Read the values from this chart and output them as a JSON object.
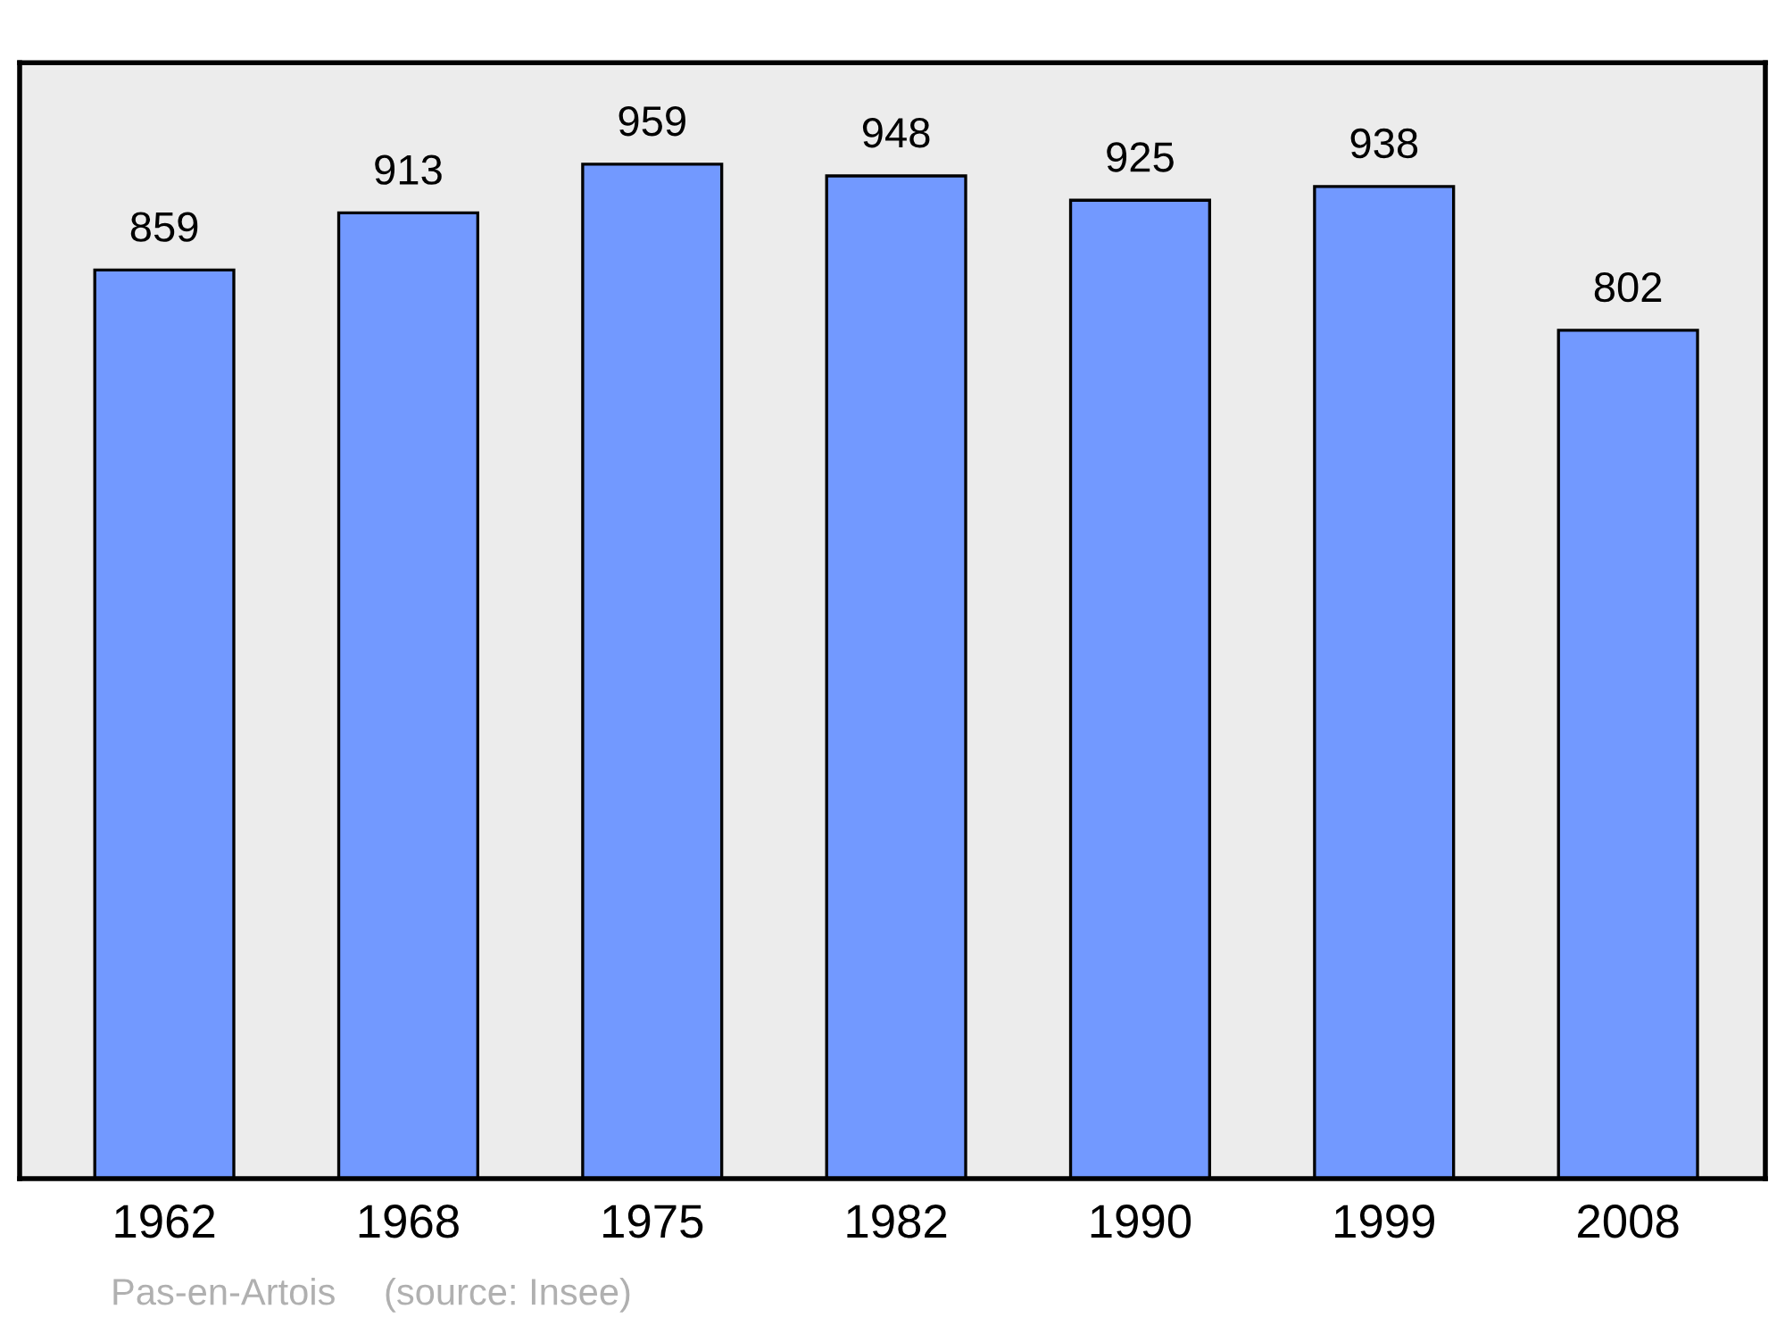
{
  "chart_data": {
    "type": "bar",
    "categories": [
      "1962",
      "1968",
      "1975",
      "1982",
      "1990",
      "1999",
      "2008"
    ],
    "values": [
      859,
      913,
      959,
      948,
      925,
      938,
      802
    ],
    "color": "#7299ff",
    "ylim": [
      0,
      1055
    ],
    "data_labels": true,
    "tick_labels": "x",
    "grid": false,
    "annotations": [
      "Pas-en-Artois",
      "(source: Insee)"
    ]
  }
}
